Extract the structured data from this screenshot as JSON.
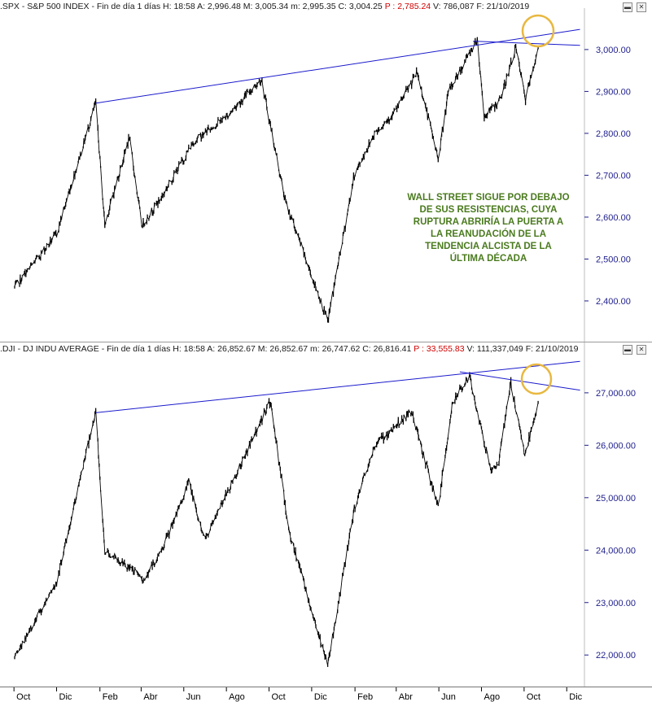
{
  "top_header": {
    "symbol": ".SPX",
    "name": "S&P 500 INDEX",
    "period": "Fin de día 1 días",
    "h": "H: 18:58",
    "a": "A: 2,996.48",
    "m": "M: 3,005.34",
    "mn": "m: 2,995.35",
    "c": "C: 3,004.25",
    "p": "P : 2,785.24",
    "v": "V: 786,087",
    "f": "F: 21/10/2019"
  },
  "bottom_header": {
    "symbol": ".DJI",
    "name": "DJ INDU AVERAGE",
    "period": "Fin de día 1 días",
    "h": "H: 18:58",
    "a": "A: 26,852.67",
    "m": "M: 26,852.67",
    "mn": "m: 26,747.62",
    "c": "C: 26,816.41",
    "p": "P : 33,555.83",
    "v": "V: 111,337,049",
    "f": "F: 21/10/2019"
  },
  "annotation": "WALL STREET SIGUE POR DEBAJO DE SUS RESISTENCIAS, CUYA RUPTURA ABRIRÍA LA PUERTA A LA REANUDACIÓN DE LA TENDENCIA ALCISTA DE LA ÚLTIMA DÉCADA",
  "colors": {
    "price": "#000000",
    "trendline": "#1a1acc",
    "circle": "#e8b840",
    "annotation": "#4a7a1e",
    "axis_text": "#1e1e8c",
    "p_value": "#d00000"
  },
  "chart_data": [
    {
      "type": "line",
      "series_label": ".SPX",
      "x": [
        "2017-10-01",
        "2017-12-01",
        "2018-01-26",
        "2018-02-08",
        "2018-03-15",
        "2018-04-02",
        "2018-05-01",
        "2018-06-15",
        "2018-08-01",
        "2018-09-20",
        "2018-10-24",
        "2018-12-24",
        "2019-01-31",
        "2019-03-01",
        "2019-04-01",
        "2019-05-01",
        "2019-05-31",
        "2019-06-15",
        "2019-07-26",
        "2019-08-05",
        "2019-08-28",
        "2019-09-19",
        "2019-10-03",
        "2019-10-21"
      ],
      "values": [
        2430,
        2560,
        2872,
        2581,
        2790,
        2580,
        2650,
        2780,
        2840,
        2930,
        2640,
        2351,
        2700,
        2800,
        2855,
        2945,
        2740,
        2900,
        3025,
        2840,
        2880,
        3005,
        2880,
        3004
      ],
      "yticks": [
        2400,
        2500,
        2600,
        2700,
        2800,
        2900,
        3000
      ],
      "ytick_labels": [
        "2,400.00",
        "2,500.00",
        "2,600.00",
        "2,700.00",
        "2,800.00",
        "2,900.00",
        "3,000.00"
      ],
      "ylim": [
        2330,
        3060
      ],
      "trendlines": [
        {
          "from": [
            "2018-01-26",
            2872
          ],
          "to": [
            "2019-12-20",
            3048
          ]
        },
        {
          "from": [
            "2019-07-20",
            3020
          ],
          "to": [
            "2019-12-20",
            3010
          ]
        }
      ]
    },
    {
      "type": "line",
      "series_label": ".DJI",
      "x": [
        "2017-10-01",
        "2017-12-01",
        "2018-01-26",
        "2018-02-08",
        "2018-03-22",
        "2018-04-02",
        "2018-05-01",
        "2018-06-08",
        "2018-07-01",
        "2018-10-03",
        "2018-10-29",
        "2018-12-24",
        "2019-01-31",
        "2019-03-01",
        "2019-04-23",
        "2019-05-31",
        "2019-06-20",
        "2019-07-15",
        "2019-08-14",
        "2019-08-26",
        "2019-09-12",
        "2019-10-02",
        "2019-10-21"
      ],
      "values": [
        21900,
        23400,
        26620,
        24000,
        23600,
        23400,
        24000,
        25300,
        24200,
        26830,
        24400,
        21800,
        24800,
        26000,
        26650,
        24800,
        26800,
        27330,
        25500,
        25700,
        27200,
        25800,
        26816
      ],
      "yticks": [
        22000,
        23000,
        24000,
        25000,
        26000,
        27000
      ],
      "ytick_labels": [
        "22,000.00",
        "23,000.00",
        "24,000.00",
        "25,000.00",
        "26,000.00",
        "27,000.00"
      ],
      "ylim": [
        21600,
        27650
      ],
      "trendlines": [
        {
          "from": [
            "2018-01-26",
            26620
          ],
          "to": [
            "2019-12-20",
            27600
          ]
        },
        {
          "from": [
            "2019-07-01",
            27400
          ],
          "to": [
            "2019-12-20",
            27050
          ]
        }
      ]
    }
  ],
  "x_axis": {
    "months": [
      {
        "label": "Oct",
        "date": "2017-10-01"
      },
      {
        "label": "Dic",
        "date": "2017-12-01"
      },
      {
        "label": "Feb",
        "date": "2018-02-01"
      },
      {
        "label": "Abr",
        "date": "2018-04-01"
      },
      {
        "label": "Jun",
        "date": "2018-06-01"
      },
      {
        "label": "Ago",
        "date": "2018-08-01"
      },
      {
        "label": "Oct",
        "date": "2018-10-01"
      },
      {
        "label": "Dic",
        "date": "2018-12-01"
      },
      {
        "label": "Feb",
        "date": "2019-02-01"
      },
      {
        "label": "Abr",
        "date": "2019-04-01"
      },
      {
        "label": "Jun",
        "date": "2019-06-01"
      },
      {
        "label": "Ago",
        "date": "2019-08-01"
      },
      {
        "label": "Oct",
        "date": "2019-10-01"
      },
      {
        "label": "Dic",
        "date": "2019-12-01"
      }
    ]
  }
}
